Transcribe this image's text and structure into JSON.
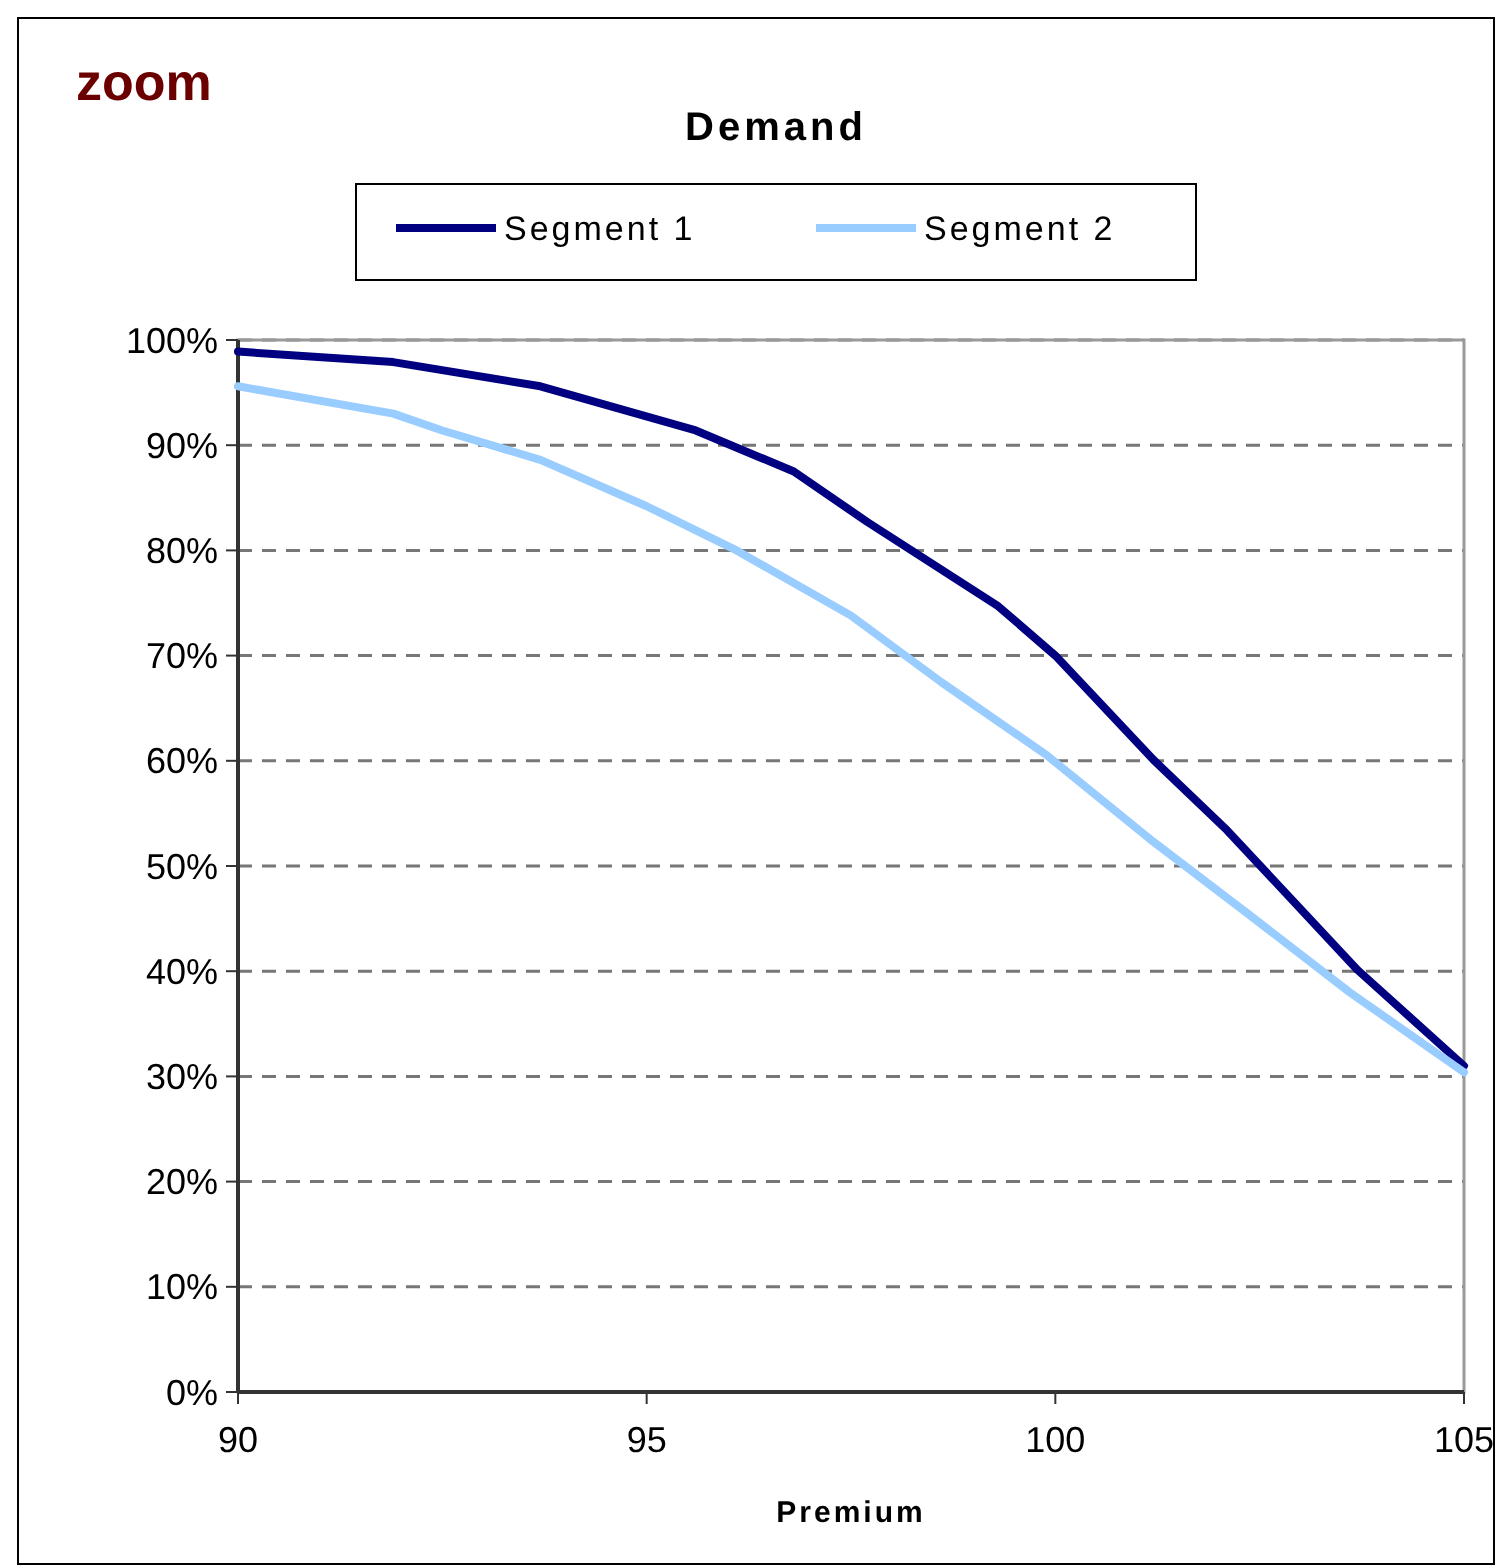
{
  "chart_data": {
    "type": "line",
    "title": "Demand",
    "xlabel": "Premium",
    "annotations": [
      "zoom"
    ],
    "xlim": [
      90,
      105
    ],
    "xticks": [
      90,
      95,
      100,
      105
    ],
    "ylim": [
      0,
      1
    ],
    "yticks": [
      {
        "value": 0,
        "label": "0%"
      },
      {
        "value": 0.1,
        "label": "10%"
      },
      {
        "value": 0.2,
        "label": "20%"
      },
      {
        "value": 0.3,
        "label": "30%"
      },
      {
        "value": 0.4,
        "label": "40%"
      },
      {
        "value": 0.5,
        "label": "50%"
      },
      {
        "value": 0.6,
        "label": "60%"
      },
      {
        "value": 0.7,
        "label": "70%"
      },
      {
        "value": 0.8,
        "label": "80%"
      },
      {
        "value": 0.9,
        "label": "90%"
      },
      {
        "value": 1,
        "label": "100%"
      }
    ],
    "grid": "y",
    "legend": "top",
    "marker": "none",
    "line_style": "solid",
    "series": [
      {
        "name": "Segment 1",
        "color": "#000080",
        "x": [
          90,
          91.9,
          93.7,
          95.6,
          96.8,
          97.7,
          99.3,
          100,
          101.2,
          102.1,
          103.7,
          105
        ],
        "values": [
          0.989,
          0.979,
          0.956,
          0.914,
          0.875,
          0.827,
          0.747,
          0.7,
          0.601,
          0.534,
          0.401,
          0.31
        ]
      },
      {
        "name": "Segment 2",
        "color": "#99ccff",
        "x": [
          90,
          91.9,
          92.5,
          93.7,
          95,
          96.1,
          97.5,
          98.6,
          99.9,
          101.2,
          102.4,
          103.6,
          105
        ],
        "values": [
          0.956,
          0.93,
          0.914,
          0.886,
          0.842,
          0.8,
          0.738,
          0.675,
          0.605,
          0.523,
          0.452,
          0.38,
          0.304
        ]
      }
    ]
  }
}
